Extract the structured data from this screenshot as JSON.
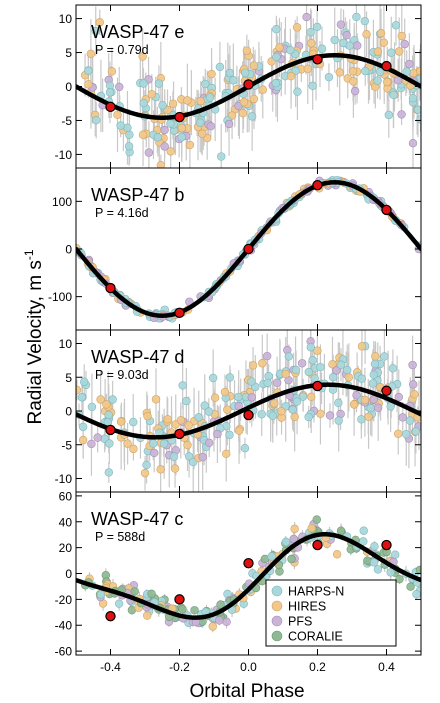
{
  "figure": {
    "ylabel": "Radial Velocity, m s",
    "ylabel_sup": "-1",
    "xlabel": "Orbital Phase"
  },
  "legend": {
    "placement": "bottom-right of last panel",
    "entries": [
      {
        "label": "HARPS-N",
        "color": "#a8d8dc"
      },
      {
        "label": "HIRES",
        "color": "#f2c88a"
      },
      {
        "label": "PFS",
        "color": "#c9b3d6"
      },
      {
        "label": "CORALIE",
        "color": "#8fb894"
      }
    ]
  },
  "chart_data": [
    {
      "type": "scatter",
      "title": "WASP-47 e",
      "subtitle": "P = 0.79d",
      "xlim": [
        -0.5,
        0.5
      ],
      "ylim": [
        -12,
        12
      ],
      "yticks": [
        -10,
        -5,
        0,
        5,
        10
      ],
      "xticks": [
        -0.4,
        -0.2,
        0.0,
        0.2,
        0.4
      ],
      "xtick_labels_shown": false,
      "model": {
        "amplitude": 4.6,
        "phase_of_max": 0.25,
        "offset": 0,
        "harmonic": 0,
        "harmonic_phase": 0
      },
      "binned": {
        "x": [
          -0.4,
          -0.2,
          0.0,
          0.2,
          0.4
        ],
        "y": [
          -3.0,
          -4.5,
          0.3,
          4.0,
          3.0
        ]
      },
      "scatter": {
        "n": 260,
        "seed": 11,
        "noise": 3.2,
        "err_min": 1.5,
        "err_max": 5.5,
        "mix": [
          0.45,
          0.35,
          0.2,
          0
        ]
      }
    },
    {
      "type": "scatter",
      "title": "WASP-47 b",
      "subtitle": "P = 4.16d",
      "xlim": [
        -0.5,
        0.5
      ],
      "ylim": [
        -170,
        170
      ],
      "yticks": [
        -100,
        0,
        100
      ],
      "xticks": [
        -0.4,
        -0.2,
        0.0,
        0.2,
        0.4
      ],
      "xtick_labels_shown": false,
      "model": {
        "amplitude": 140,
        "phase_of_max": 0.25,
        "offset": 0,
        "harmonic": 0,
        "harmonic_phase": 0
      },
      "binned": {
        "x": [
          -0.4,
          -0.2,
          0.0,
          0.2,
          0.4
        ],
        "y": [
          -82,
          -134,
          0,
          134,
          82
        ]
      },
      "scatter": {
        "n": 230,
        "seed": 23,
        "noise": 4,
        "err_min": 1,
        "err_max": 3,
        "mix": [
          0.5,
          0.2,
          0.3,
          0
        ]
      }
    },
    {
      "type": "scatter",
      "title": "WASP-47 d",
      "subtitle": "P = 9.03d",
      "xlim": [
        -0.5,
        0.5
      ],
      "ylim": [
        -12,
        12
      ],
      "yticks": [
        -10,
        -5,
        0,
        5,
        10
      ],
      "xticks": [
        -0.4,
        -0.2,
        0.0,
        0.2,
        0.4
      ],
      "xtick_labels_shown": false,
      "model": {
        "amplitude": 3.9,
        "phase_of_max": 0.23,
        "offset": 0,
        "harmonic": 0,
        "harmonic_phase": 0
      },
      "binned": {
        "x": [
          -0.4,
          -0.2,
          0.0,
          0.2,
          0.4
        ],
        "y": [
          -2.8,
          -3.4,
          -0.6,
          3.7,
          3.0
        ]
      },
      "scatter": {
        "n": 250,
        "seed": 37,
        "noise": 3.2,
        "err_min": 1.5,
        "err_max": 5.5,
        "mix": [
          0.45,
          0.35,
          0.2,
          0
        ]
      }
    },
    {
      "type": "scatter",
      "title": "WASP-47 c",
      "subtitle": "P = 588d",
      "xlim": [
        -0.5,
        0.5
      ],
      "ylim": [
        -63,
        63
      ],
      "yticks": [
        -60,
        -40,
        -20,
        0,
        20,
        40,
        60
      ],
      "xticks": [
        -0.4,
        -0.2,
        0.0,
        0.2,
        0.4
      ],
      "xtick_labels_shown": true,
      "model": {
        "amplitude": 29,
        "phase_of_max": 0.27,
        "offset": -4,
        "harmonic": 8,
        "harmonic_phase": 0.05
      },
      "binned": {
        "x": [
          -0.4,
          -0.2,
          0.0,
          0.2,
          0.4
        ],
        "y": [
          -33,
          -20,
          8,
          22,
          22
        ]
      },
      "scatter": {
        "n": 230,
        "seed": 53,
        "noise": 5,
        "err_min": 1.5,
        "err_max": 6,
        "mix": [
          0.3,
          0.2,
          0.2,
          0.3
        ]
      }
    }
  ]
}
